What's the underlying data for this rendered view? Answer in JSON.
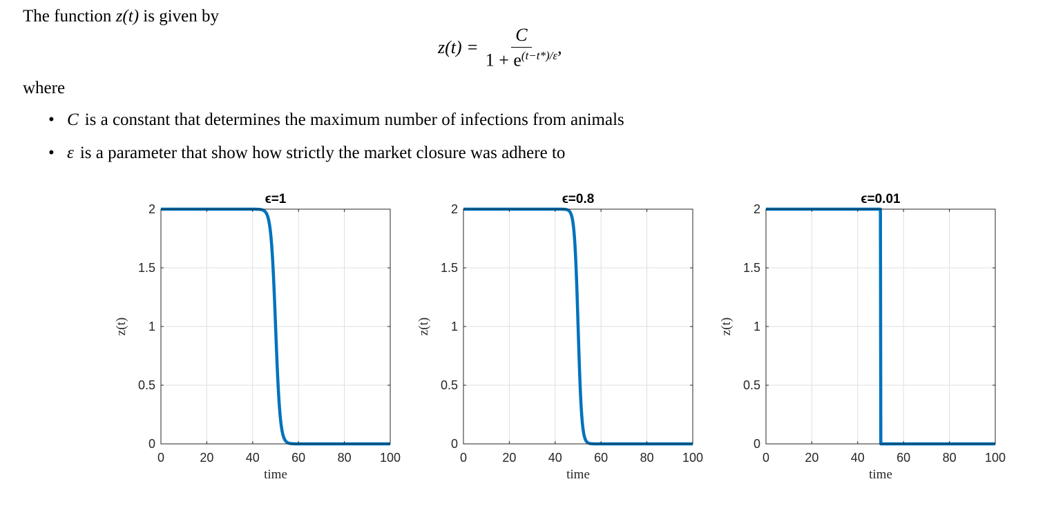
{
  "text": {
    "intro_prefix": "The function ",
    "intro_func": "z(t)",
    "intro_suffix": " is given by",
    "formula_lhs": "z(t) =",
    "formula_num": "C",
    "formula_den_base": "1 + e",
    "formula_den_exp": "(t−t*)/ε",
    "formula_tail": ",",
    "where": "where",
    "bullet1_symbol": "C",
    "bullet1_text": "is a constant that determines the maximum number of infections from animals",
    "bullet2_symbol": "ε",
    "bullet2_text": "is a parameter that show how strictly the market closure was adhere to"
  },
  "colors": {
    "line": "#0072bd",
    "grid": "#dfdfdf",
    "axis": "#262626"
  },
  "chart_data": [
    {
      "type": "line",
      "title": "ϵ=1",
      "xlabel": "time",
      "ylabel": "z(t)",
      "xlim": [
        0,
        100
      ],
      "ylim": [
        0,
        2
      ],
      "xticks": [
        "0",
        "20",
        "40",
        "60",
        "80",
        "100"
      ],
      "yticks": [
        "0",
        "0.5",
        "1",
        "1.5",
        "2"
      ],
      "grid": true,
      "series": [
        {
          "C": 2,
          "t_star": 50,
          "epsilon": 1
        }
      ]
    },
    {
      "type": "line",
      "title": "ϵ=0.8",
      "xlabel": "time",
      "ylabel": "z(t)",
      "xlim": [
        0,
        100
      ],
      "ylim": [
        0,
        2
      ],
      "xticks": [
        "0",
        "20",
        "40",
        "60",
        "80",
        "100"
      ],
      "yticks": [
        "0",
        "0.5",
        "1",
        "1.5",
        "2"
      ],
      "grid": true,
      "series": [
        {
          "C": 2,
          "t_star": 50,
          "epsilon": 0.8
        }
      ]
    },
    {
      "type": "line",
      "title": "ϵ=0.01",
      "xlabel": "time",
      "ylabel": "z(t)",
      "xlim": [
        0,
        100
      ],
      "ylim": [
        0,
        2
      ],
      "xticks": [
        "0",
        "20",
        "40",
        "60",
        "80",
        "100"
      ],
      "yticks": [
        "0",
        "0.5",
        "1",
        "1.5",
        "2"
      ],
      "grid": true,
      "series": [
        {
          "C": 2,
          "t_star": 50,
          "epsilon": 0.01
        }
      ]
    }
  ]
}
